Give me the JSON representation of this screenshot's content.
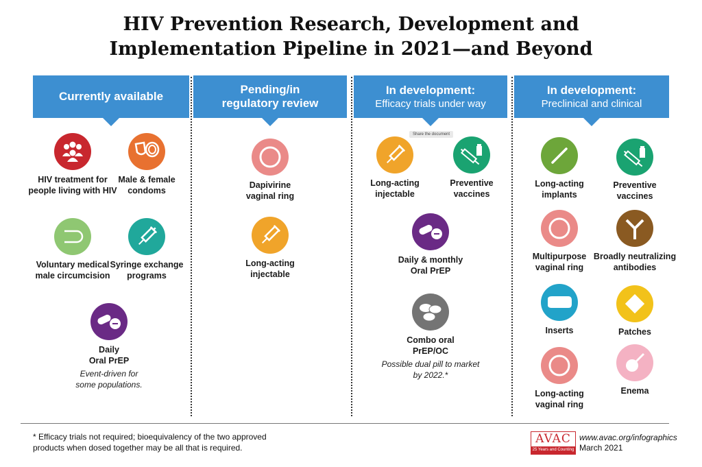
{
  "title_line1": "HIV Prevention Research, Development and",
  "title_line2": "Implementation Pipeline in 2021—and Beyond",
  "tooltip": "Share the document",
  "columns": [
    {
      "heading": [
        "Currently available"
      ],
      "items": [
        {
          "icon": "people-group-icon",
          "color": "#c8272e",
          "label": [
            "HIV treatment for",
            "people living with HIV"
          ]
        },
        {
          "icon": "condoms-icon",
          "color": "#e87130",
          "label": [
            "Male & female",
            "condoms"
          ]
        },
        {
          "icon": "circumcision-icon",
          "color": "#8fc772",
          "label": [
            "Voluntary medical",
            "male circumcision"
          ]
        },
        {
          "icon": "syringe-icon",
          "color": "#20a89b",
          "label": [
            "Syringe exchange",
            "programs"
          ]
        },
        {
          "icon": "pills-icon",
          "color": "#6a2a85",
          "label": [
            "Daily",
            "Oral PrEP"
          ],
          "note": [
            "Event-driven for",
            "some populations."
          ]
        }
      ]
    },
    {
      "heading": [
        "Pending/in",
        "regulatory review"
      ],
      "items": [
        {
          "icon": "vaginal-ring-icon",
          "color": "#ea8a88",
          "label": [
            "Dapivirine",
            "vaginal ring"
          ]
        },
        {
          "icon": "syringe-icon",
          "color": "#f0a42a",
          "label": [
            "Long-acting",
            "injectable"
          ]
        }
      ]
    },
    {
      "heading": [
        "In development:"
      ],
      "subheading": "Efficacy trials under way",
      "items": [
        {
          "icon": "syringe-icon",
          "color": "#f0a42a",
          "label": [
            "Long-acting",
            "injectable"
          ]
        },
        {
          "icon": "vaccine-icon",
          "color": "#1aa371",
          "label": [
            "Preventive",
            "vaccines"
          ]
        },
        {
          "icon": "pills-icon",
          "color": "#6a2a85",
          "label": [
            "Daily & monthly",
            "Oral PrEP"
          ]
        },
        {
          "icon": "combo-pills-icon",
          "color": "#747474",
          "label": [
            "Combo oral",
            "PrEP/OC"
          ],
          "note": [
            "Possible dual pill to market",
            "by 2022.*"
          ]
        }
      ]
    },
    {
      "heading": [
        "In development:"
      ],
      "subheading": "Preclinical and clinical",
      "items": [
        {
          "icon": "implant-icon",
          "color": "#6da63a",
          "label": [
            "Long-acting",
            "implants"
          ]
        },
        {
          "icon": "vaccine-icon",
          "color": "#1aa371",
          "label": [
            "Preventive",
            "vaccines"
          ]
        },
        {
          "icon": "vaginal-ring-icon",
          "color": "#ea8a88",
          "label": [
            "Multipurpose",
            "vaginal ring"
          ]
        },
        {
          "icon": "antibody-icon",
          "color": "#8a5a22",
          "label": [
            "Broadly neutralizing",
            "antibodies"
          ]
        },
        {
          "icon": "insert-icon",
          "color": "#22a3c9",
          "label": [
            "Inserts"
          ]
        },
        {
          "icon": "patch-icon",
          "color": "#f2c21a",
          "label": [
            "Patches"
          ]
        },
        {
          "icon": "vaginal-ring-icon",
          "color": "#ea8a88",
          "label": [
            "Long-acting",
            "vaginal ring"
          ]
        },
        {
          "icon": "enema-icon",
          "color": "#f4b2c3",
          "label": [
            "Enema"
          ]
        }
      ]
    }
  ],
  "footnote": [
    "* Efficacy trials not required; bioequivalency of the two approved",
    "products when dosed together may be all that is required."
  ],
  "logo": {
    "name": "AVAC",
    "tagline": "25 Years and Counting",
    "color": "#c8272e"
  },
  "website": "www.avac.org/infographics",
  "date": "March 2021",
  "colors": {
    "header": "#3d8fd1"
  }
}
